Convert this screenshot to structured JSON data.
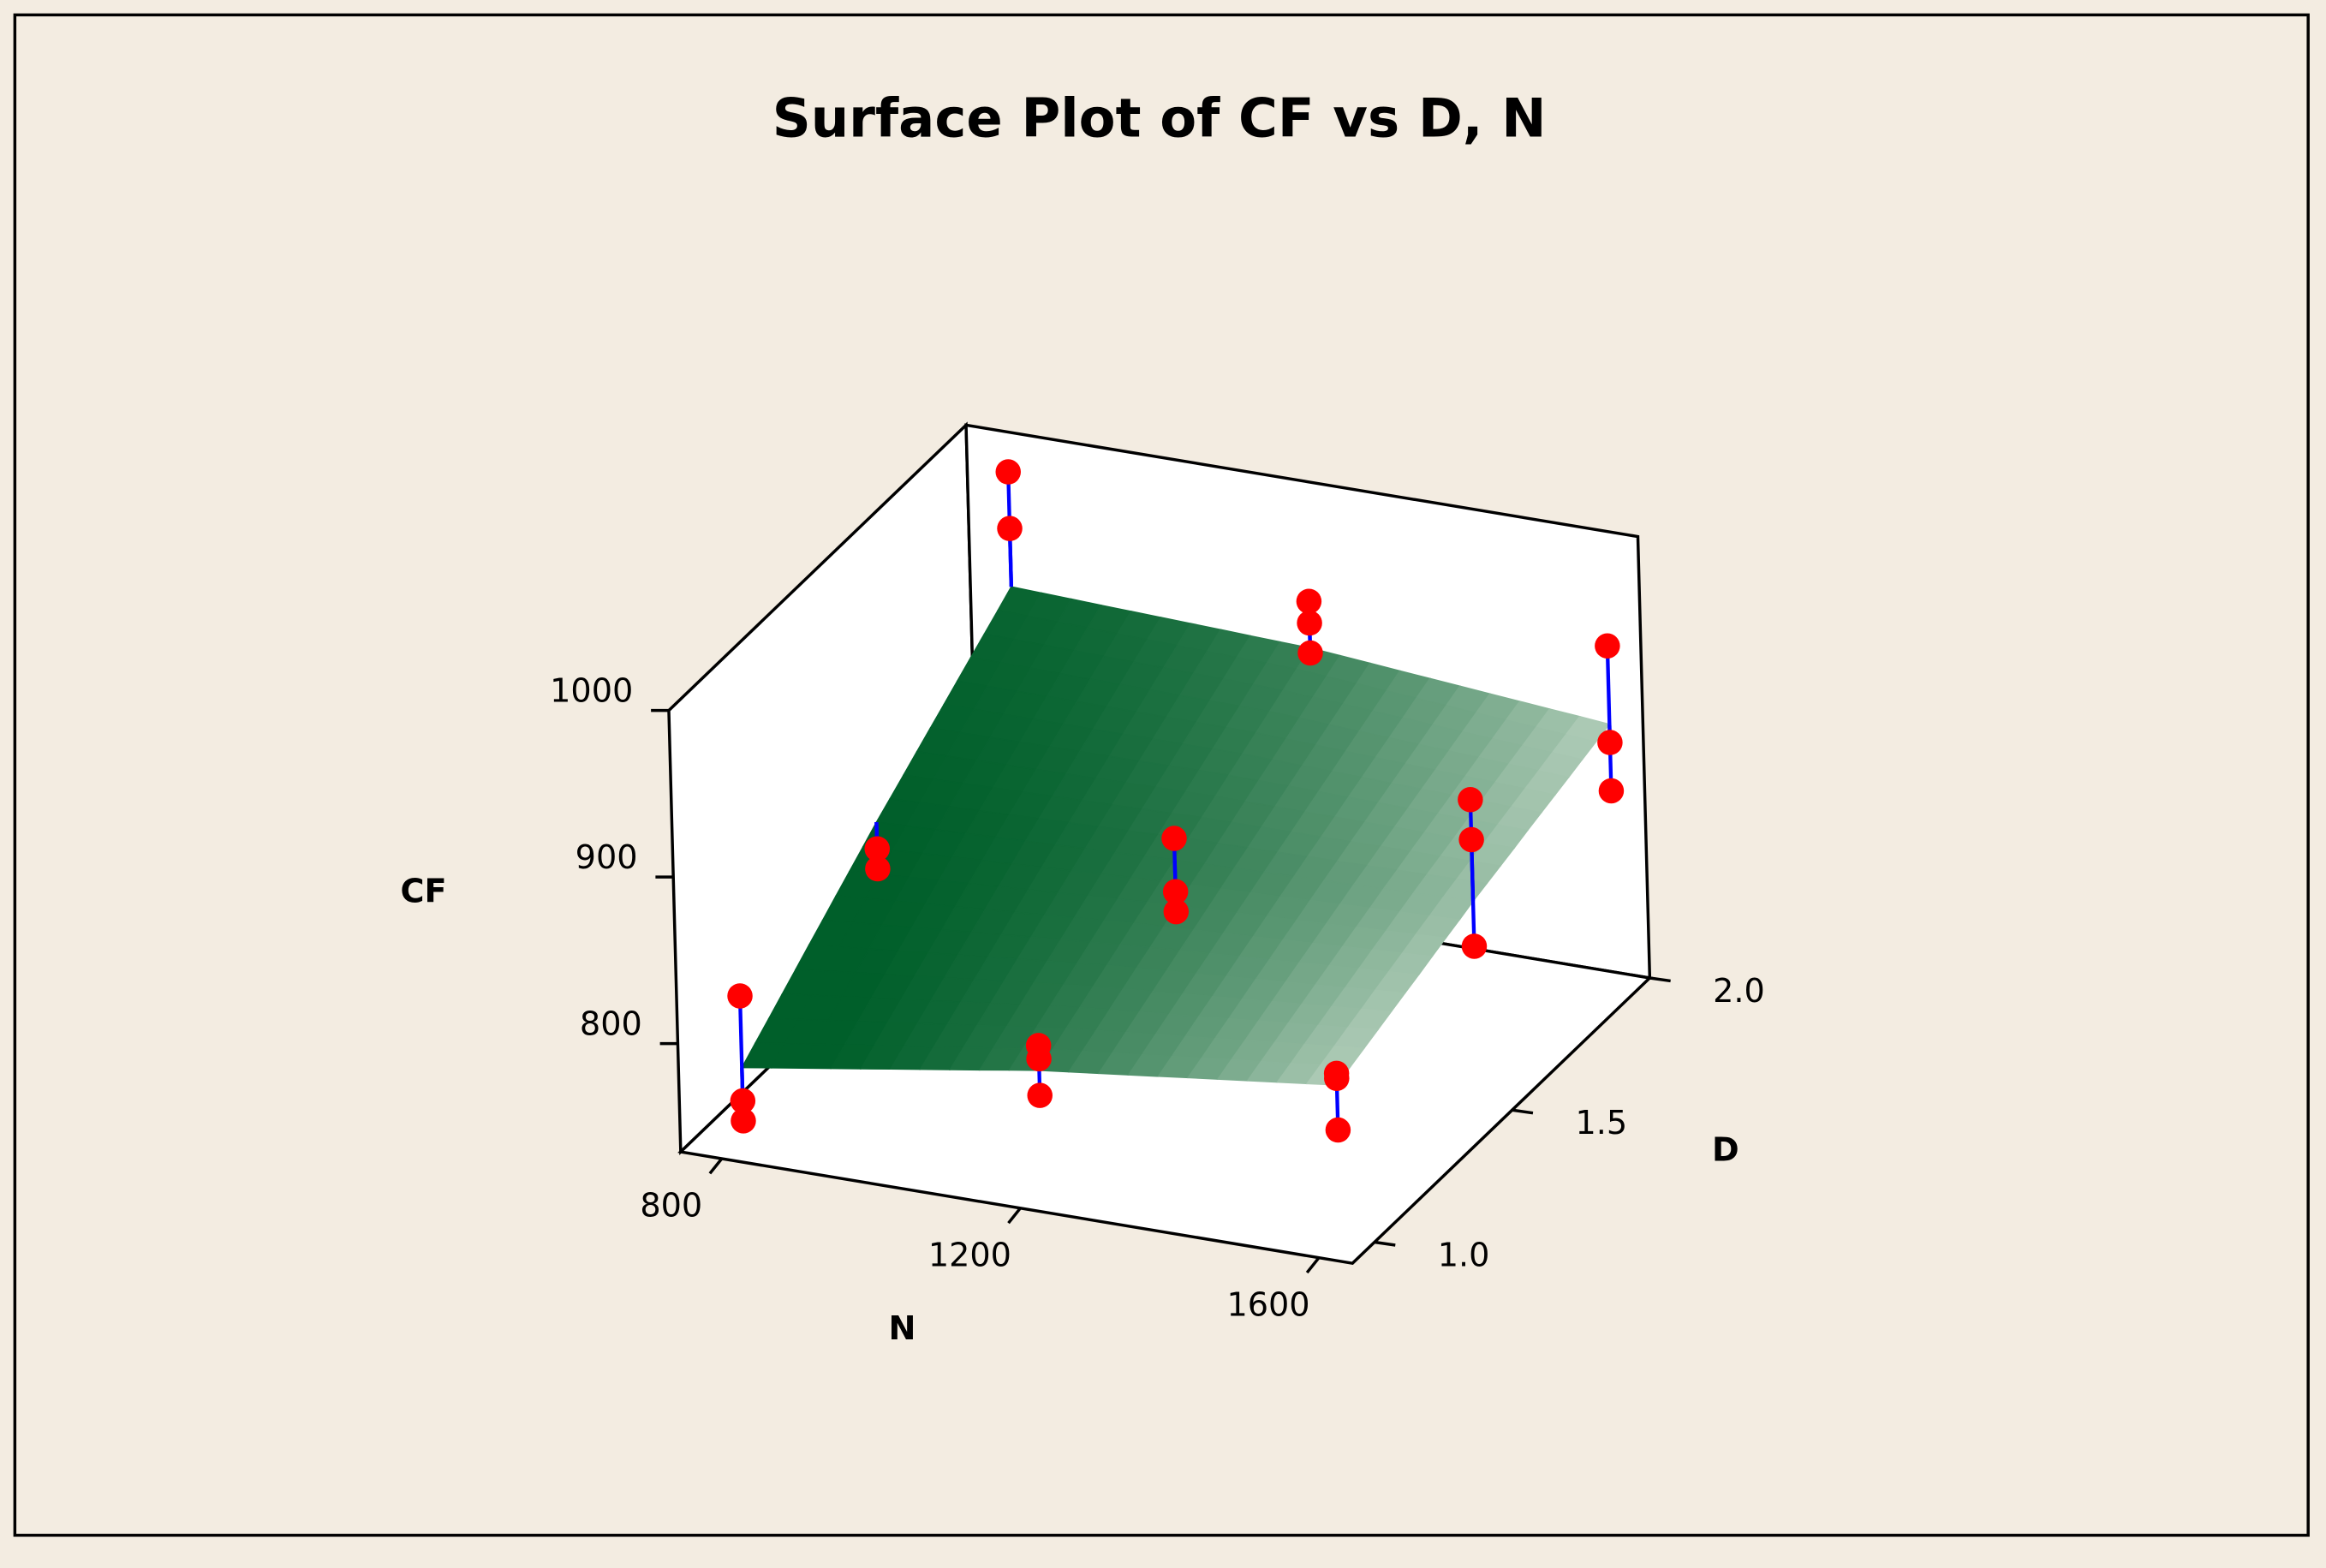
{
  "chart_data": {
    "type": "surface3d",
    "title": "Surface Plot of CF vs D, N",
    "x_label": "N",
    "y_label": "D",
    "z_label": "CF",
    "xlim": [
      745,
      1645
    ],
    "xticks": [
      800,
      1200,
      1600
    ],
    "ylim": [
      0.92,
      2.0
    ],
    "yticks": [
      {
        "value": 1,
        "label": "1.0"
      },
      {
        "value": 1.5,
        "label": "1.5"
      },
      {
        "value": 2,
        "label": "2.0"
      }
    ],
    "zlim": [
      735,
      1000
    ],
    "zticks": [
      800,
      900,
      1000
    ],
    "surface": {
      "x": [
        800,
        1200,
        1600
      ],
      "y": [
        1,
        1.5,
        2
      ],
      "z": [
        [
          777,
          805,
          826
        ],
        [
          845,
          852,
          857
        ],
        [
          907,
          900,
          884
        ]
      ],
      "colors": [
        "#005f2a",
        "#b0ccb8"
      ]
    },
    "points": {
      "x": [
        800,
        800,
        800,
        800,
        800,
        800,
        800,
        1200,
        1200,
        1200,
        1200,
        1200,
        1200,
        1200,
        1200,
        1200,
        1600,
        1600,
        1600,
        1600,
        1600,
        1600,
        1600,
        1600,
        1600
      ],
      "y": [
        1,
        1,
        1,
        1.5,
        1.5,
        2,
        2,
        1,
        1,
        1,
        1.5,
        1.5,
        1.5,
        2,
        2,
        2,
        1,
        1,
        1,
        1.5,
        1.5,
        1.5,
        2,
        2,
        2
      ],
      "z": [
        820,
        757,
        745,
        829,
        817,
        976,
        942,
        820,
        812,
        790,
        865,
        833,
        821,
        928,
        915,
        897,
        833,
        830,
        799,
        918,
        894,
        830,
        931,
        873,
        844
      ],
      "color": "#ff0000",
      "stem_color": "#0000ff"
    }
  }
}
